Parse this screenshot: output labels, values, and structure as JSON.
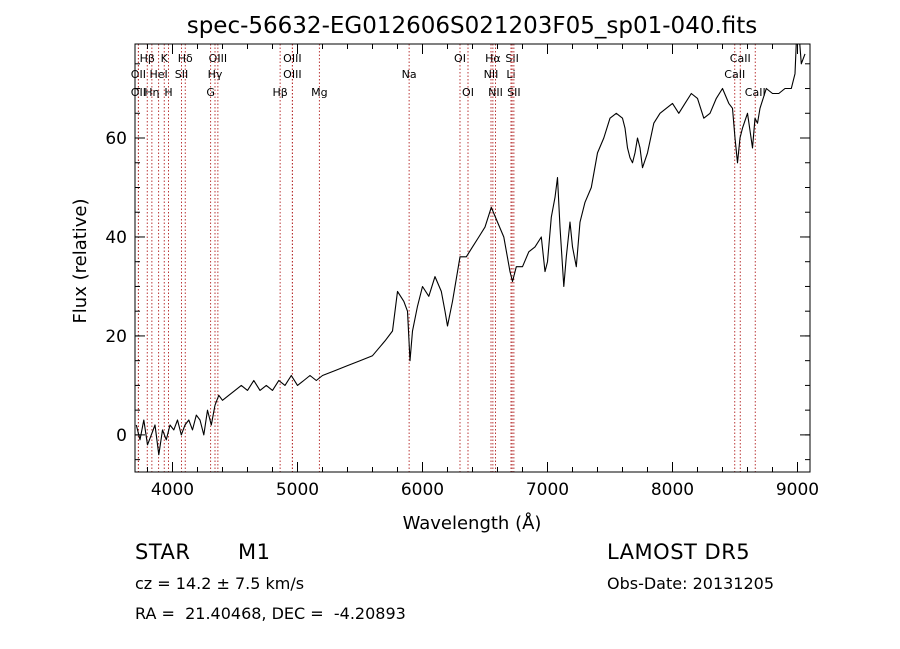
{
  "chart_data": {
    "type": "line",
    "title": "spec-56632-EG012606S021203F05_sp01-040.fits",
    "xlabel": "Wavelength (Å)",
    "ylabel": "Flux (relative)",
    "xlim": [
      3700,
      9100
    ],
    "ylim": [
      -7.5,
      79
    ],
    "x_ticks": [
      4000,
      5000,
      6000,
      7000,
      8000,
      9000
    ],
    "y_ticks": [
      0,
      20,
      40,
      60
    ],
    "grid": false,
    "series": [
      {
        "color": "#000000",
        "x": [
          3710,
          3740,
          3770,
          3800,
          3830,
          3860,
          3890,
          3920,
          3950,
          3980,
          4010,
          4040,
          4070,
          4100,
          4130,
          4160,
          4190,
          4220,
          4250,
          4280,
          4310,
          4340,
          4370,
          4400,
          4450,
          4500,
          4550,
          4600,
          4650,
          4700,
          4750,
          4800,
          4850,
          4900,
          4950,
          5000,
          5050,
          5100,
          5150,
          5200,
          5300,
          5400,
          5500,
          5600,
          5700,
          5760,
          5800,
          5850,
          5880,
          5900,
          5920,
          5960,
          6000,
          6050,
          6100,
          6150,
          6180,
          6200,
          6240,
          6260,
          6300,
          6350,
          6400,
          6450,
          6500,
          6550,
          6600,
          6650,
          6700,
          6720,
          6750,
          6800,
          6850,
          6900,
          6950,
          6980,
          7000,
          7030,
          7060,
          7080,
          7100,
          7130,
          7150,
          7180,
          7200,
          7230,
          7260,
          7300,
          7350,
          7400,
          7450,
          7500,
          7550,
          7600,
          7620,
          7640,
          7660,
          7680,
          7700,
          7720,
          7740,
          7760,
          7800,
          7850,
          7900,
          7950,
          8000,
          8050,
          8100,
          8150,
          8200,
          8250,
          8300,
          8350,
          8400,
          8450,
          8480,
          8500,
          8520,
          8540,
          8560,
          8600,
          8640,
          8660,
          8680,
          8700,
          8750,
          8800,
          8850,
          8900,
          8950,
          8980,
          9000,
          9030,
          9060
        ],
        "y": [
          2,
          -1,
          3,
          -2,
          0,
          2,
          -4,
          1,
          -1,
          2,
          1,
          3,
          0,
          2,
          3,
          1,
          4,
          3,
          0,
          5,
          2,
          6,
          8,
          7,
          8,
          9,
          10,
          9,
          11,
          9,
          10,
          9,
          11,
          10,
          12,
          10,
          11,
          12,
          11,
          12,
          13,
          14,
          15,
          16,
          19,
          21,
          29,
          27,
          25,
          15,
          21,
          26,
          30,
          28,
          32,
          29,
          25,
          22,
          27,
          30,
          36,
          36,
          38,
          40,
          42,
          46,
          43,
          40,
          33,
          31,
          34,
          34,
          37,
          38,
          40,
          33,
          35,
          44,
          48,
          52,
          42,
          30,
          36,
          43,
          38,
          34,
          43,
          47,
          50,
          57,
          60,
          64,
          65,
          64,
          62,
          58,
          56,
          55,
          57,
          60,
          58,
          54,
          57,
          63,
          65,
          66,
          67,
          65,
          67,
          69,
          68,
          64,
          65,
          68,
          70,
          67,
          66,
          60,
          55,
          60,
          62,
          65,
          58,
          64,
          63,
          66,
          70,
          69,
          69,
          70,
          70,
          73,
          85,
          75,
          77
        ]
      }
    ],
    "line_markers": [
      {
        "label": "Hβ",
        "x": 3798,
        "row": 1
      },
      {
        "label": "K",
        "x": 3934,
        "row": 1
      },
      {
        "label": "Hδ",
        "x": 4102,
        "row": 1
      },
      {
        "label": "OIII",
        "x": 4363,
        "row": 1
      },
      {
        "label": "OIII",
        "x": 4959,
        "row": 1
      },
      {
        "label": "OI",
        "x": 6300,
        "row": 1
      },
      {
        "label": "Hα",
        "x": 6563,
        "row": 1
      },
      {
        "label": "SII",
        "x": 6717,
        "row": 1
      },
      {
        "label": "CaII",
        "x": 8542,
        "row": 1
      },
      {
        "label": "OII",
        "x": 3727,
        "row": 2
      },
      {
        "label": "HeI",
        "x": 3889,
        "row": 2
      },
      {
        "label": "SII",
        "x": 4072,
        "row": 2
      },
      {
        "label": "Hγ",
        "x": 4340,
        "row": 2
      },
      {
        "label": "OIII",
        "x": 4959,
        "row": 2
      },
      {
        "label": "Na",
        "x": 5893,
        "row": 2
      },
      {
        "label": "NII",
        "x": 6548,
        "row": 2
      },
      {
        "label": "Li",
        "x": 6708,
        "row": 2
      },
      {
        "label": "CaII",
        "x": 8498,
        "row": 2
      },
      {
        "label": "OII",
        "x": 3727,
        "row": 3
      },
      {
        "label": "Hη",
        "x": 3835,
        "row": 3
      },
      {
        "label": "H",
        "x": 3968,
        "row": 3
      },
      {
        "label": "G",
        "x": 4305,
        "row": 3
      },
      {
        "label": "Hβ",
        "x": 4861,
        "row": 3
      },
      {
        "label": "Mg",
        "x": 5175,
        "row": 3
      },
      {
        "label": "OI",
        "x": 6364,
        "row": 3
      },
      {
        "label": "NII",
        "x": 6584,
        "row": 3
      },
      {
        "label": "SII",
        "x": 6731,
        "row": 3
      },
      {
        "label": "CaII",
        "x": 8662,
        "row": 3
      }
    ]
  },
  "info": {
    "object_class": "STAR",
    "subclass": "M1",
    "survey": "LAMOST DR5",
    "redshift": "cz = 14.2 ± 7.5 km/s",
    "obs_date": "Obs-Date: 20131205",
    "coords": "RA =  21.40468, DEC =  -4.20893"
  }
}
